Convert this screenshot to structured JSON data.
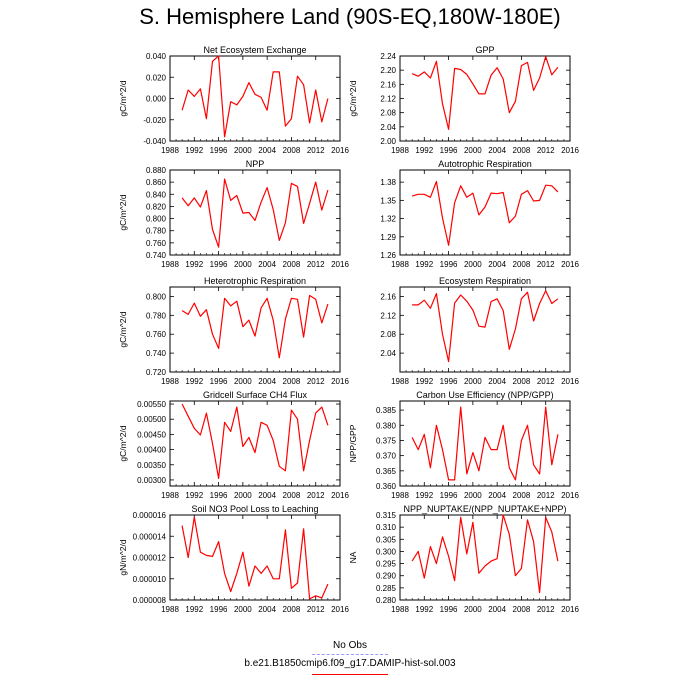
{
  "title": "S. Hemisphere Land (90S-EQ,180W-180E)",
  "colors": {
    "series": "#ff0000",
    "obs": "#9999ff",
    "axis": "#000000"
  },
  "legend": {
    "obs_label": "No Obs",
    "case_label": "b.e21.B1850cmip6.f09_g17.DAMIP-hist-sol.003"
  },
  "chart_data": [
    {
      "type": "line",
      "title": "Net Ecosystem Exchange",
      "ylabel": "gC/m^2/d",
      "xlim": [
        1988,
        2016
      ],
      "xticks": [
        1988,
        1992,
        1996,
        2000,
        2004,
        2008,
        2012,
        2016
      ],
      "xtick_labels": [
        "1988",
        "1992",
        "1996",
        "2000",
        "2004",
        "2008",
        "2012",
        "2016"
      ],
      "ylim": [
        -0.04,
        0.04
      ],
      "yticks": [
        -0.04,
        -0.02,
        0,
        0.02,
        0.04
      ],
      "ytick_labels": [
        "-0.040",
        "-0.020",
        "0.000",
        "0.020",
        "0.040"
      ],
      "x": [
        1990,
        1991,
        1992,
        1993,
        1994,
        1995,
        1996,
        1997,
        1998,
        1999,
        2000,
        2001,
        2002,
        2003,
        2004,
        2005,
        2006,
        2007,
        2008,
        2009,
        2010,
        2011,
        2012,
        2013,
        2014
      ],
      "values": [
        -0.011,
        0.008,
        0.002,
        0.009,
        -0.019,
        0.035,
        0.04,
        -0.036,
        -0.003,
        -0.006,
        0.002,
        0.015,
        0.004,
        0.001,
        -0.011,
        0.025,
        0.025,
        -0.026,
        -0.019,
        0.021,
        0.013,
        -0.023,
        0.008,
        -0.022,
        0
      ]
    },
    {
      "type": "line",
      "title": "GPP",
      "ylabel": "gC/m^2/d",
      "xlim": [
        1988,
        2016
      ],
      "xticks": [
        1988,
        1992,
        1996,
        2000,
        2004,
        2008,
        2012,
        2016
      ],
      "xtick_labels": [
        "1988",
        "1992",
        "1996",
        "2000",
        "2004",
        "2008",
        "2012",
        "2016"
      ],
      "ylim": [
        2.0,
        2.24
      ],
      "yticks": [
        2.0,
        2.04,
        2.08,
        2.12,
        2.16,
        2.2,
        2.24
      ],
      "ytick_labels": [
        "2.00",
        "2.04",
        "2.08",
        "2.12",
        "2.16",
        "2.20",
        "2.24"
      ],
      "x": [
        1990,
        1991,
        1992,
        1993,
        1994,
        1995,
        1996,
        1997,
        1998,
        1999,
        2000,
        2001,
        2002,
        2003,
        2004,
        2005,
        2006,
        2007,
        2008,
        2009,
        2010,
        2011,
        2012,
        2013,
        2014
      ],
      "values": [
        2.19,
        2.183,
        2.195,
        2.178,
        2.225,
        2.105,
        2.033,
        2.205,
        2.202,
        2.188,
        2.161,
        2.133,
        2.133,
        2.186,
        2.207,
        2.175,
        2.08,
        2.112,
        2.213,
        2.222,
        2.143,
        2.178,
        2.238,
        2.187,
        2.208
      ]
    },
    {
      "type": "line",
      "title": "NPP",
      "ylabel": "gC/m^2/d",
      "xlim": [
        1988,
        2016
      ],
      "xticks": [
        1988,
        1992,
        1996,
        2000,
        2004,
        2008,
        2012,
        2016
      ],
      "xtick_labels": [
        "1988",
        "1992",
        "1996",
        "2000",
        "2004",
        "2008",
        "2012",
        "2016"
      ],
      "ylim": [
        0.74,
        0.88
      ],
      "yticks": [
        0.74,
        0.76,
        0.78,
        0.8,
        0.82,
        0.84,
        0.86,
        0.88
      ],
      "ytick_labels": [
        "0.740",
        "0.760",
        "0.780",
        "0.800",
        "0.820",
        "0.840",
        "0.860",
        "0.880"
      ],
      "x": [
        1990,
        1991,
        1992,
        1993,
        1994,
        1995,
        1996,
        1997,
        1998,
        1999,
        2000,
        2001,
        2002,
        2003,
        2004,
        2005,
        2006,
        2007,
        2008,
        2009,
        2010,
        2011,
        2012,
        2013,
        2014
      ],
      "values": [
        0.834,
        0.821,
        0.834,
        0.819,
        0.846,
        0.782,
        0.753,
        0.865,
        0.83,
        0.838,
        0.809,
        0.81,
        0.797,
        0.827,
        0.851,
        0.815,
        0.764,
        0.793,
        0.858,
        0.853,
        0.792,
        0.825,
        0.86,
        0.814,
        0.847
      ]
    },
    {
      "type": "line",
      "title": "Autotrophic Respiration",
      "ylabel": "",
      "xlim": [
        1988,
        2016
      ],
      "xticks": [
        1988,
        1992,
        1996,
        2000,
        2004,
        2008,
        2012,
        2016
      ],
      "xtick_labels": [
        "1988",
        "1992",
        "1996",
        "2000",
        "2004",
        "2008",
        "2012",
        "2016"
      ],
      "ylim": [
        1.26,
        1.4
      ],
      "yticks": [
        1.26,
        1.29,
        1.32,
        1.35,
        1.38
      ],
      "ytick_labels": [
        "1.26",
        "1.29",
        "1.32",
        "1.35",
        "1.38"
      ],
      "x": [
        1990,
        1991,
        1992,
        1993,
        1994,
        1995,
        1996,
        1997,
        1998,
        1999,
        2000,
        2001,
        2002,
        2003,
        2004,
        2005,
        2006,
        2007,
        2008,
        2009,
        2010,
        2011,
        2012,
        2013,
        2014
      ],
      "values": [
        1.357,
        1.36,
        1.36,
        1.355,
        1.381,
        1.321,
        1.276,
        1.346,
        1.374,
        1.355,
        1.362,
        1.326,
        1.339,
        1.362,
        1.361,
        1.363,
        1.313,
        1.324,
        1.36,
        1.366,
        1.349,
        1.35,
        1.375,
        1.374,
        1.364
      ]
    },
    {
      "type": "line",
      "title": "Heterotrophic Respiration",
      "ylabel": "gC/m^2/d",
      "xlim": [
        1988,
        2016
      ],
      "xticks": [
        1988,
        1992,
        1996,
        2000,
        2004,
        2008,
        2012,
        2016
      ],
      "xtick_labels": [
        "1988",
        "1992",
        "1996",
        "2000",
        "2004",
        "2008",
        "2012",
        "2016"
      ],
      "ylim": [
        0.72,
        0.81
      ],
      "yticks": [
        0.72,
        0.74,
        0.76,
        0.78,
        0.8
      ],
      "ytick_labels": [
        "0.720",
        "0.740",
        "0.760",
        "0.780",
        "0.800"
      ],
      "x": [
        1990,
        1991,
        1992,
        1993,
        1994,
        1995,
        1996,
        1997,
        1998,
        1999,
        2000,
        2001,
        2002,
        2003,
        2004,
        2005,
        2006,
        2007,
        2008,
        2009,
        2010,
        2011,
        2012,
        2013,
        2014
      ],
      "values": [
        0.785,
        0.781,
        0.793,
        0.779,
        0.786,
        0.76,
        0.745,
        0.798,
        0.79,
        0.795,
        0.768,
        0.775,
        0.758,
        0.788,
        0.798,
        0.775,
        0.735,
        0.776,
        0.798,
        0.797,
        0.757,
        0.801,
        0.797,
        0.772,
        0.792
      ]
    },
    {
      "type": "line",
      "title": "Ecosystem Respiration",
      "ylabel": "",
      "xlim": [
        1988,
        2016
      ],
      "xticks": [
        1988,
        1992,
        1996,
        2000,
        2004,
        2008,
        2012,
        2016
      ],
      "xtick_labels": [
        "1988",
        "1992",
        "1996",
        "2000",
        "2004",
        "2008",
        "2012",
        "2016"
      ],
      "ylim": [
        2.0,
        2.18
      ],
      "yticks": [
        2.04,
        2.08,
        2.12,
        2.16
      ],
      "ytick_labels": [
        "2.04",
        "2.08",
        "2.12",
        "2.16"
      ],
      "x": [
        1990,
        1991,
        1992,
        1993,
        1994,
        1995,
        1996,
        1997,
        1998,
        1999,
        2000,
        2001,
        2002,
        2003,
        2004,
        2005,
        2006,
        2007,
        2008,
        2009,
        2010,
        2011,
        2012,
        2013,
        2014
      ],
      "values": [
        2.142,
        2.142,
        2.152,
        2.135,
        2.166,
        2.08,
        2.022,
        2.146,
        2.163,
        2.15,
        2.131,
        2.097,
        2.095,
        2.149,
        2.155,
        2.13,
        2.048,
        2.091,
        2.155,
        2.169,
        2.108,
        2.145,
        2.172,
        2.145,
        2.155
      ]
    },
    {
      "type": "line",
      "title": "Gridcell Surface CH4 Flux",
      "ylabel": "gC/m^2/d",
      "xlim": [
        1988,
        2016
      ],
      "xticks": [
        1988,
        1992,
        1996,
        2000,
        2004,
        2008,
        2012,
        2016
      ],
      "xtick_labels": [
        "1988",
        "1992",
        "1996",
        "2000",
        "2004",
        "2008",
        "2012",
        "2016"
      ],
      "ylim": [
        0.0028,
        0.0056
      ],
      "yticks": [
        0.003,
        0.0035,
        0.004,
        0.0045,
        0.005,
        0.0055
      ],
      "ytick_labels": [
        "0.00300",
        "0.00350",
        "0.00400",
        "0.00450",
        "0.00500",
        "0.00550"
      ],
      "x": [
        1990,
        1991,
        1992,
        1993,
        1994,
        1995,
        1996,
        1997,
        1998,
        1999,
        2000,
        2001,
        2002,
        2003,
        2004,
        2005,
        2006,
        2007,
        2008,
        2009,
        2010,
        2011,
        2012,
        2013,
        2014
      ],
      "values": [
        0.0055,
        0.0051,
        0.0047,
        0.00448,
        0.0052,
        0.0042,
        0.00305,
        0.0049,
        0.0046,
        0.0054,
        0.0041,
        0.0044,
        0.0039,
        0.0049,
        0.0048,
        0.0043,
        0.00345,
        0.0033,
        0.0053,
        0.005,
        0.0033,
        0.0043,
        0.0052,
        0.0054,
        0.0048
      ]
    },
    {
      "type": "line",
      "title": "Carbon Use Efficiency (NPP/GPP)",
      "ylabel": "NPP/GPP",
      "xlim": [
        1988,
        2016
      ],
      "xticks": [
        1988,
        1992,
        1996,
        2000,
        2004,
        2008,
        2012,
        2016
      ],
      "xtick_labels": [
        "1988",
        "1992",
        "1996",
        "2000",
        "2004",
        "2008",
        "2012",
        "2016"
      ],
      "ylim": [
        0.36,
        0.388
      ],
      "yticks": [
        0.36,
        0.365,
        0.37,
        0.375,
        0.38,
        0.385
      ],
      "ytick_labels": [
        "0.360",
        "0.365",
        "0.370",
        "0.375",
        "0.380",
        "0.385"
      ],
      "x": [
        1990,
        1991,
        1992,
        1993,
        1994,
        1995,
        1996,
        1997,
        1998,
        1999,
        2000,
        2001,
        2002,
        2003,
        2004,
        2005,
        2006,
        2007,
        2008,
        2009,
        2010,
        2011,
        2012,
        2013,
        2014
      ],
      "values": [
        0.376,
        0.372,
        0.377,
        0.366,
        0.38,
        0.372,
        0.362,
        0.362,
        0.386,
        0.364,
        0.371,
        0.365,
        0.376,
        0.372,
        0.372,
        0.38,
        0.366,
        0.362,
        0.375,
        0.38,
        0.367,
        0.364,
        0.386,
        0.367,
        0.377
      ]
    },
    {
      "type": "line",
      "title": "Soil NO3 Pool Loss to Leaching",
      "ylabel": "gN/m^2/d",
      "xlim": [
        1988,
        2016
      ],
      "xticks": [
        1988,
        1992,
        1996,
        2000,
        2004,
        2008,
        2012,
        2016
      ],
      "xtick_labels": [
        "1988",
        "1992",
        "1996",
        "2000",
        "2004",
        "2008",
        "2012",
        "2016"
      ],
      "ylim": [
        8e-06,
        1.6e-05
      ],
      "yticks": [
        8e-06,
        1e-05,
        1.2e-05,
        1.4e-05,
        1.6e-05
      ],
      "ytick_labels": [
        "0.000008",
        "0.000010",
        "0.000012",
        "0.000014",
        "0.000016"
      ],
      "x": [
        1990,
        1991,
        1992,
        1993,
        1994,
        1995,
        1996,
        1997,
        1998,
        1999,
        2000,
        2001,
        2002,
        2003,
        2004,
        2005,
        2006,
        2007,
        2008,
        2009,
        2010,
        2011,
        2012,
        2013,
        2014
      ],
      "values": [
        1.5e-05,
        1.2e-05,
        1.58e-05,
        1.25e-05,
        1.22e-05,
        1.21e-05,
        1.35e-05,
        1.05e-05,
        8.8e-06,
        1.05e-05,
        1.25e-05,
        9.3e-06,
        1.12e-05,
        1.05e-05,
        1.12e-05,
        1e-05,
        1e-05,
        1.46e-05,
        9.1e-06,
        9.6e-06,
        1.47e-05,
        8.1e-06,
        8.4e-06,
        8.2e-06,
        9.5e-06
      ]
    },
    {
      "type": "line",
      "title": "NPP_NUPTAKE/(NPP_NUPTAKE+NPP)",
      "ylabel": "NA",
      "xlim": [
        1988,
        2016
      ],
      "xticks": [
        1988,
        1992,
        1996,
        2000,
        2004,
        2008,
        2012,
        2016
      ],
      "xtick_labels": [
        "1988",
        "1992",
        "1996",
        "2000",
        "2004",
        "2008",
        "2012",
        "2016"
      ],
      "ylim": [
        0.28,
        0.315
      ],
      "yticks": [
        0.28,
        0.285,
        0.29,
        0.295,
        0.3,
        0.305,
        0.31,
        0.315
      ],
      "ytick_labels": [
        "0.280",
        "0.285",
        "0.290",
        "0.295",
        "0.300",
        "0.305",
        "0.310",
        "0.315"
      ],
      "x": [
        1990,
        1991,
        1992,
        1993,
        1994,
        1995,
        1996,
        1997,
        1998,
        1999,
        2000,
        2001,
        2002,
        2003,
        2004,
        2005,
        2006,
        2007,
        2008,
        2009,
        2010,
        2011,
        2012,
        2013,
        2014
      ],
      "values": [
        0.296,
        0.3,
        0.289,
        0.302,
        0.295,
        0.306,
        0.298,
        0.288,
        0.314,
        0.299,
        0.312,
        0.291,
        0.294,
        0.296,
        0.297,
        0.315,
        0.307,
        0.29,
        0.293,
        0.313,
        0.304,
        0.283,
        0.314,
        0.308,
        0.296
      ]
    }
  ]
}
